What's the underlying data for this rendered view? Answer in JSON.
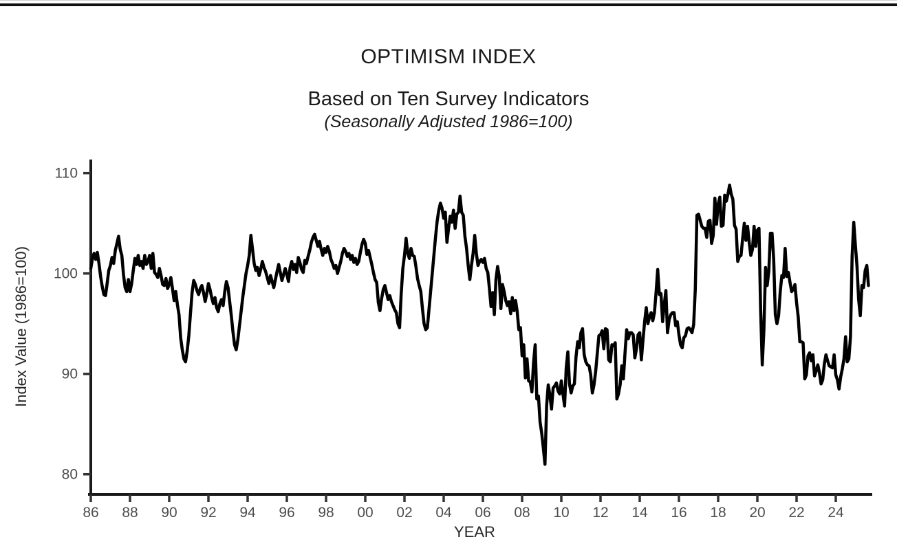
{
  "chart_data": {
    "type": "line",
    "title": "OPTIMISM INDEX",
    "subtitle": "Based on Ten Survey Indicators",
    "subtitle2": "(Seasonally Adjusted 1986=100)",
    "xlabel": "YEAR",
    "ylabel": "Index Value (1986=100)",
    "series_name": "Optimism Index",
    "frequency": "monthly",
    "start_year": 1986,
    "start_month": 1,
    "end_label": "Sep 2025",
    "x_ticks": [
      "86",
      "88",
      "90",
      "92",
      "94",
      "96",
      "98",
      "00",
      "02",
      "04",
      "06",
      "08",
      "10",
      "12",
      "14",
      "16",
      "18",
      "20",
      "22",
      "24"
    ],
    "x_tick_years": [
      1986,
      1988,
      1990,
      1992,
      1994,
      1996,
      1998,
      2000,
      2002,
      2004,
      2006,
      2008,
      2010,
      2012,
      2014,
      2016,
      2018,
      2020,
      2022,
      2024
    ],
    "y_ticks": [
      80,
      90,
      100,
      110
    ],
    "xlim": [
      1986.0,
      2026.0
    ],
    "ylim": [
      78.0,
      111.5
    ],
    "grid": false,
    "legend": "none",
    "line_color": "#000000",
    "axis_color": "#1a1a1a",
    "axis_text_color": "#4d4d4d",
    "values": [
      100.5,
      101.5,
      102.0,
      101.4,
      102.1,
      101.0,
      99.7,
      98.7,
      97.9,
      97.8,
      99.0,
      100.3,
      100.8,
      101.6,
      101.0,
      102.3,
      103.0,
      103.7,
      102.4,
      101.8,
      99.9,
      98.6,
      98.2,
      99.4,
      98.2,
      99.0,
      100.3,
      101.5,
      100.9,
      101.8,
      100.8,
      101.2,
      100.5,
      101.8,
      100.9,
      101.2,
      101.8,
      100.5,
      102.0,
      100.1,
      99.9,
      99.6,
      100.5,
      99.8,
      98.9,
      98.8,
      99.5,
      98.5,
      98.9,
      99.6,
      98.5,
      97.3,
      98.2,
      96.9,
      95.9,
      93.6,
      92.4,
      91.5,
      91.2,
      92.3,
      93.8,
      96.0,
      98.1,
      99.3,
      98.9,
      98.3,
      97.9,
      98.5,
      98.8,
      98.1,
      97.2,
      98.0,
      99.0,
      98.4,
      97.6,
      97.0,
      97.6,
      96.6,
      96.2,
      97.0,
      97.4,
      96.8,
      98.2,
      99.2,
      98.6,
      97.2,
      95.8,
      94.2,
      92.9,
      92.4,
      93.4,
      94.8,
      96.2,
      97.6,
      98.8,
      100.0,
      100.8,
      101.8,
      103.8,
      102.4,
      101.0,
      100.3,
      100.6,
      99.8,
      100.4,
      101.2,
      100.6,
      100.2,
      99.6,
      99.0,
      99.8,
      99.2,
      98.6,
      99.4,
      100.2,
      100.9,
      100.1,
      99.3,
      99.9,
      100.5,
      99.9,
      99.2,
      100.6,
      101.2,
      100.4,
      100.9,
      100.1,
      101.6,
      101.1,
      100.4,
      100.1,
      101.3,
      101.0,
      101.7,
      102.3,
      103.1,
      103.6,
      103.9,
      103.3,
      102.7,
      103.2,
      102.4,
      101.8,
      102.5,
      102.1,
      102.7,
      102.2,
      101.4,
      101.0,
      100.5,
      100.8,
      100.0,
      100.6,
      101.2,
      102.0,
      102.5,
      102.2,
      101.7,
      102.0,
      101.4,
      101.8,
      101.1,
      101.5,
      100.9,
      101.2,
      102.1,
      102.9,
      103.4,
      103.0,
      101.9,
      102.3,
      101.6,
      100.9,
      100.1,
      99.4,
      99.1,
      97.1,
      96.3,
      97.5,
      98.4,
      98.8,
      98.1,
      97.4,
      97.8,
      97.2,
      96.8,
      96.4,
      96.1,
      95.0,
      94.6,
      98.0,
      100.5,
      101.8,
      103.5,
      102.0,
      101.5,
      102.5,
      101.8,
      101.7,
      100.7,
      99.5,
      98.8,
      98.2,
      96.5,
      95.0,
      94.4,
      94.6,
      96.4,
      98.2,
      100.0,
      101.8,
      103.6,
      105.2,
      106.3,
      107.0,
      106.5,
      105.5,
      106.1,
      103.1,
      104.5,
      105.7,
      105.1,
      106.3,
      104.5,
      105.9,
      106.1,
      107.7,
      106.1,
      105.8,
      103.7,
      102.5,
      100.8,
      99.4,
      100.8,
      102.0,
      103.8,
      102.0,
      100.8,
      101.2,
      101.4,
      101.1,
      101.5,
      100.5,
      100.1,
      98.5,
      96.7,
      98.1,
      95.9,
      99.4,
      100.7,
      99.7,
      96.5,
      98.9,
      98.2,
      97.3,
      96.8,
      97.2,
      96.0,
      97.6,
      96.3,
      97.3,
      96.2,
      94.4,
      94.6,
      91.8,
      92.9,
      89.6,
      91.5,
      89.3,
      89.2,
      88.2,
      91.1,
      92.9,
      87.5,
      87.8,
      85.2,
      84.1,
      82.6,
      81.0,
      86.8,
      88.9,
      87.9,
      86.5,
      88.6,
      88.8,
      89.1,
      88.3,
      88.0,
      89.3,
      88.0,
      86.8,
      90.6,
      92.2,
      89.0,
      88.1,
      88.8,
      89.0,
      91.7,
      93.2,
      92.6,
      94.1,
      94.5,
      91.9,
      91.2,
      90.9,
      90.8,
      89.9,
      88.1,
      88.9,
      90.2,
      92.0,
      93.8,
      93.9,
      94.3,
      92.5,
      94.5,
      94.4,
      91.4,
      91.2,
      92.9,
      92.8,
      93.1,
      87.5,
      88.0,
      88.9,
      90.8,
      89.5,
      92.1,
      94.4,
      93.5,
      94.1,
      94.1,
      93.9,
      91.6,
      92.5,
      93.9,
      94.1,
      91.4,
      93.4,
      95.2,
      96.6,
      95.0,
      95.7,
      96.1,
      95.3,
      96.1,
      98.1,
      100.4,
      97.9,
      98.0,
      95.2,
      96.9,
      98.3,
      94.1,
      95.4,
      95.9,
      96.1,
      96.1,
      94.8,
      95.2,
      93.9,
      92.9,
      92.6,
      93.6,
      93.8,
      94.5,
      94.6,
      94.4,
      94.1,
      94.9,
      98.4,
      105.8,
      105.9,
      105.3,
      104.7,
      104.5,
      104.5,
      103.6,
      105.2,
      105.3,
      103.0,
      103.8,
      107.5,
      104.9,
      106.9,
      107.6,
      104.7,
      104.8,
      107.8,
      107.2,
      107.9,
      108.8,
      107.9,
      107.4,
      104.8,
      104.4,
      101.2,
      101.7,
      101.8,
      103.5,
      105.0,
      103.3,
      104.7,
      103.1,
      101.8,
      102.4,
      104.7,
      102.7,
      104.3,
      104.5,
      96.4,
      90.9,
      94.4,
      100.6,
      98.8,
      100.2,
      104.0,
      104.0,
      101.4,
      95.9,
      95.0,
      95.8,
      98.2,
      99.8,
      99.6,
      102.5,
      99.7,
      100.1,
      99.1,
      98.2,
      98.4,
      98.9,
      97.1,
      95.7,
      93.2,
      93.2,
      93.1,
      89.5,
      89.9,
      91.8,
      92.1,
      91.3,
      91.9,
      89.8,
      90.3,
      90.9,
      90.1,
      89.0,
      89.4,
      91.0,
      91.9,
      91.3,
      90.8,
      90.7,
      90.6,
      91.9,
      89.9,
      89.4,
      88.5,
      89.7,
      90.5,
      91.5,
      93.7,
      91.2,
      91.5,
      93.7,
      101.7,
      105.1,
      102.8,
      100.7,
      97.4,
      95.8,
      98.8,
      98.6,
      100.3,
      100.8,
      98.8
    ]
  }
}
